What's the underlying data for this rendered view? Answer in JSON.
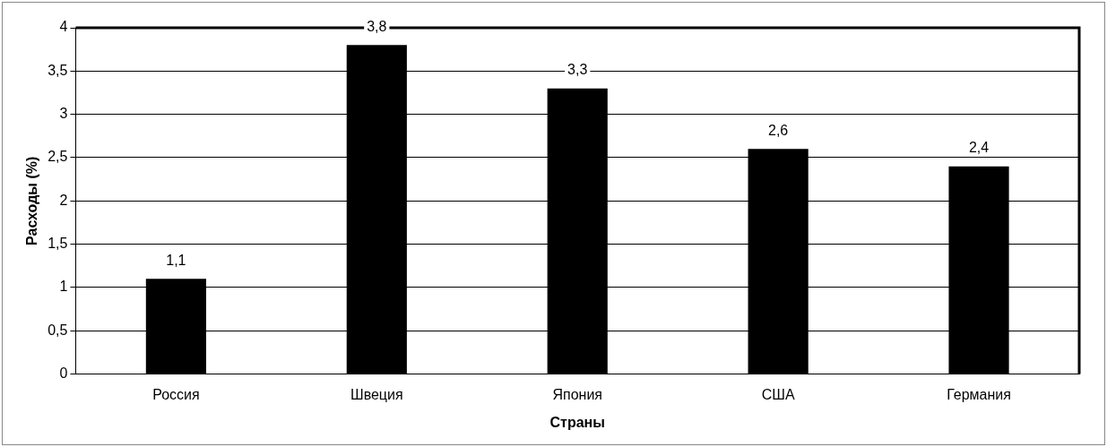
{
  "chart_data": {
    "type": "bar",
    "xlabel": "Страны",
    "ylabel": "Расходы (%)",
    "categories": [
      "Россия",
      "Швеция",
      "Япония",
      "США",
      "Германия"
    ],
    "values": [
      1.1,
      3.8,
      3.3,
      2.6,
      2.4
    ],
    "value_labels": [
      "1,1",
      "3,8",
      "3,3",
      "2,6",
      "2,4"
    ],
    "color": "#000000",
    "ylim": [
      0,
      4
    ],
    "yticks": [
      0,
      {
        "value": 0.5,
        "label": "0,5"
      },
      1,
      {
        "value": 1.5,
        "label": "1,5"
      },
      2,
      {
        "value": 2.5,
        "label": "2,5"
      },
      3,
      {
        "value": 3.5,
        "label": "3,5"
      },
      4
    ],
    "grid": "y",
    "legend": false
  }
}
